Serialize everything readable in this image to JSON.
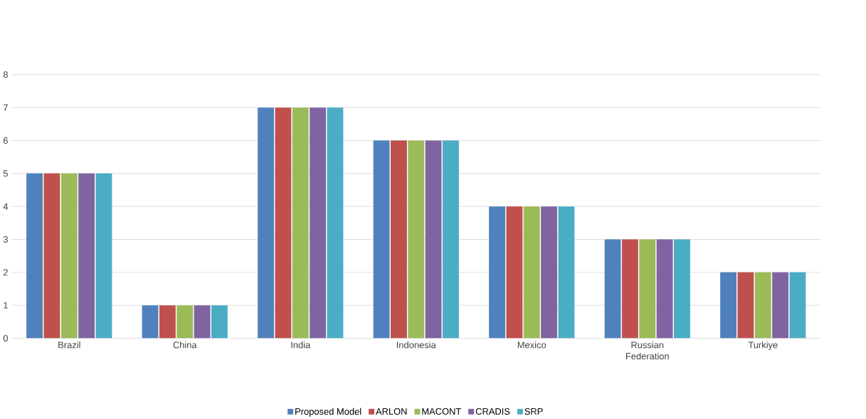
{
  "chart_data": {
    "type": "bar",
    "categories": [
      "Brazil",
      "China",
      "India",
      "Indonesia",
      "Mexico",
      "Russian Federation",
      "Turkiye"
    ],
    "series": [
      {
        "name": "Proposed Model",
        "color": "#4f81bd",
        "values": [
          5,
          1,
          7,
          6,
          4,
          3,
          2
        ]
      },
      {
        "name": "ARLON",
        "color": "#c0504d",
        "values": [
          5,
          1,
          7,
          6,
          4,
          3,
          2
        ]
      },
      {
        "name": "MACONT",
        "color": "#9bbb59",
        "values": [
          5,
          1,
          7,
          6,
          4,
          3,
          2
        ]
      },
      {
        "name": "CRADIS",
        "color": "#8064a2",
        "values": [
          5,
          1,
          7,
          6,
          4,
          3,
          2
        ]
      },
      {
        "name": "SRP",
        "color": "#4bacc6",
        "values": [
          5,
          1,
          7,
          6,
          4,
          3,
          2
        ]
      }
    ],
    "ylim": [
      0,
      8
    ],
    "yticks": [
      0,
      1,
      2,
      3,
      4,
      5,
      6,
      7,
      8
    ],
    "grid": "y",
    "legend": "bottom"
  }
}
